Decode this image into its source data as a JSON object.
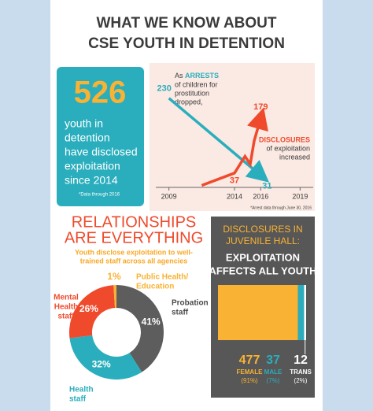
{
  "header": {
    "title_lines": [
      "WHAT WE KNOW ABOUT",
      "CSE YOUTH IN DETENTION"
    ]
  },
  "stat": {
    "number": "526",
    "text_lines": [
      "youth in",
      "detention",
      "have disclosed",
      "exploitation",
      "since 2014"
    ],
    "note": "*Data through 2016"
  },
  "chart_data": [
    {
      "type": "line",
      "annotations": {
        "arrests_prefix": "As",
        "arrests_lines": [
          "of children for",
          "prostitution",
          "dropped,"
        ],
        "disclosures_lines": [
          "of exploitation",
          "increased"
        ]
      },
      "note": "*Arrest data through June 30, 2016",
      "xlim": [
        2008,
        2020
      ],
      "xticks": [
        2009,
        2014,
        2016,
        2019
      ],
      "ylim": [
        0,
        260
      ],
      "series": [
        {
          "name": "ARRESTS",
          "color": "#2aaebd",
          "x": [
            2009,
            2016
          ],
          "values": [
            230,
            31
          ]
        },
        {
          "name": "DISCLOSURES",
          "color": "#ef4a2c",
          "x": [
            2011.5,
            2014,
            2014.8,
            2015.2,
            2015.5,
            2016
          ],
          "values": [
            5,
            37,
            80,
            60,
            120,
            179
          ]
        }
      ]
    },
    {
      "type": "pie",
      "title_lines": [
        "RELATIONSHIPS",
        "ARE EVERYTHING"
      ],
      "subtitle_lines": [
        "Youth disclose exploitation to well-",
        "trained staff across all agencies"
      ],
      "categories": [
        [
          "Probation",
          "staff"
        ],
        [
          "Health",
          "staff"
        ],
        [
          "Mental",
          "Health",
          "staff"
        ],
        [
          "Public Health/",
          "Education"
        ]
      ],
      "values": [
        41,
        32,
        26,
        1
      ],
      "value_labels": [
        "41%",
        "32%",
        "26%",
        "1%"
      ],
      "colors": [
        "#5d5d5d",
        "#2aaebd",
        "#ef4a2c",
        "#f9b233"
      ]
    },
    {
      "type": "bar",
      "title_lines": [
        "DISCLOSURES IN",
        "JUVENILE HALL:"
      ],
      "subtitle_lines": [
        "EXPLOITATION",
        "AFFECTS ALL YOUTH"
      ],
      "xlim": [
        0,
        526
      ],
      "series": [
        {
          "name": "FEMALE",
          "color": "#f9b233",
          "values": [
            477
          ],
          "share": "(91%)"
        },
        {
          "name": "MALE",
          "color": "#2aaebd",
          "values": [
            37
          ],
          "share": "(7%)"
        },
        {
          "name": "TRANS",
          "color": "#ffffff",
          "values": [
            12
          ],
          "share": "(2%)"
        }
      ]
    }
  ]
}
